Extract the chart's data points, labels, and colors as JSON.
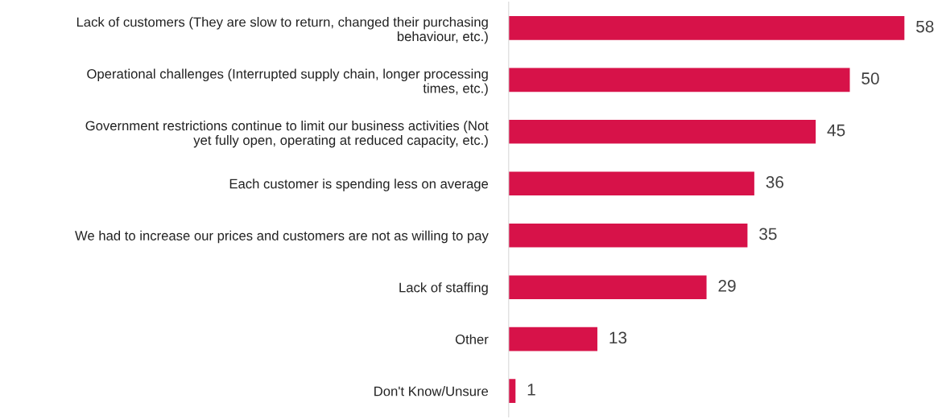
{
  "chart_data": {
    "type": "bar",
    "orientation": "horizontal",
    "categories": [
      "Lack of customers (They are slow to return, changed their purchasing\nbehaviour, etc.)",
      "Operational challenges (Interrupted supply chain, longer processing\ntimes, etc.)",
      "Government restrictions continue to limit our business activities (Not\nyet fully open, operating at reduced capacity, etc.)",
      "Each customer is spending less on average",
      "We had to increase our prices and customers are not as willing to pay",
      "Lack of staffing",
      "Other",
      "Don't Know/Unsure"
    ],
    "values": [
      58,
      50,
      45,
      36,
      35,
      29,
      13,
      1
    ],
    "color": "#d71249",
    "data_labels": true,
    "grid": false,
    "legend": false
  }
}
